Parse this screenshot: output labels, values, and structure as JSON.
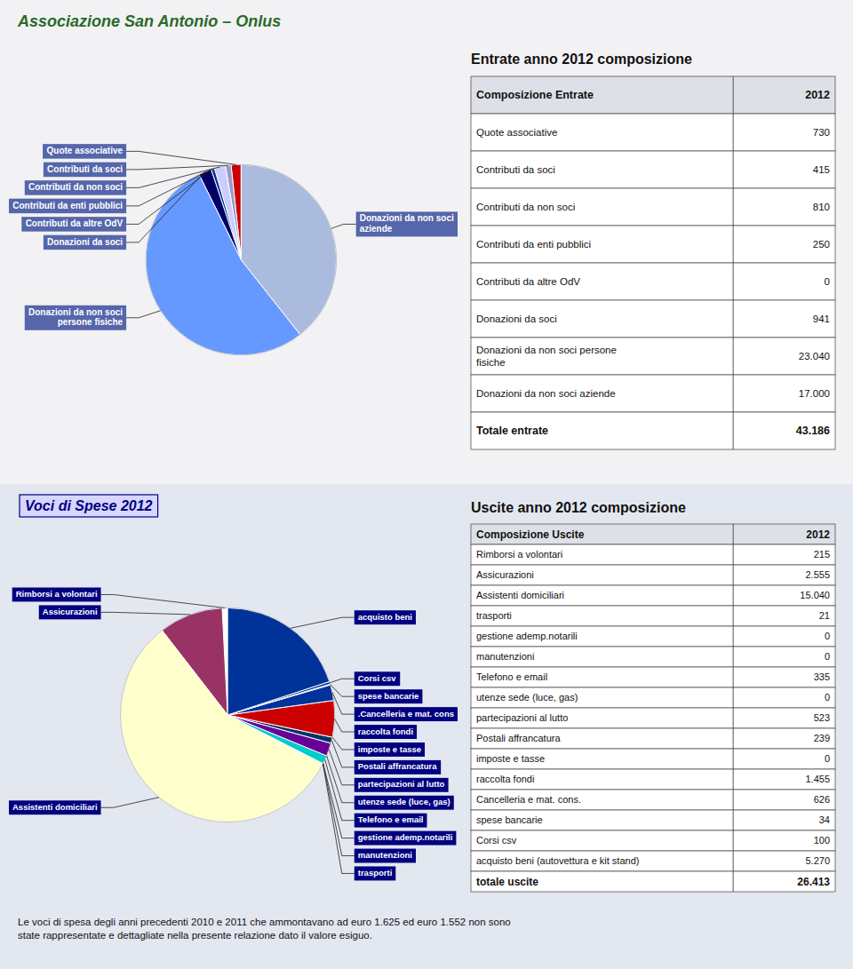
{
  "title": "Associazione San Antonio – Onlus",
  "footer": "Le voci di spesa degli anni precedenti 2010 e 2011 che ammontavano ad euro 1.625 ed euro 1.552 non sono\nstate rappresentate e dettagliate nella presente relazione dato il valore esiguo.",
  "chart_data": [
    {
      "type": "pie",
      "title": "Entrate anno 2012 composizione",
      "categories": [
        "Quote associative",
        "Contributi da soci",
        "Contributi da non soci",
        "Contributi da enti pubblici",
        "Contributi da altre OdV",
        "Donazioni da soci",
        "Donazioni da non soci\npersone fisiche",
        "Donazioni da non soci\naziende"
      ],
      "values": [
        730,
        415,
        810,
        250,
        0,
        941,
        23040,
        17000
      ],
      "colors": [
        "#cc0000",
        "#9999cc",
        "#ccccff",
        "#003399",
        "#ffff99",
        "#000066",
        "#6699ff",
        "#aabbdd"
      ],
      "table": {
        "header": [
          "Composizione Entrate",
          "2012"
        ],
        "rows": [
          [
            "Quote associative",
            "730"
          ],
          [
            "Contributi da soci",
            "415"
          ],
          [
            "Contributi da non soci",
            "810"
          ],
          [
            "Contributi da enti pubblici",
            "250"
          ],
          [
            "Contributi da altre OdV",
            "0"
          ],
          [
            "Donazioni da soci",
            "941"
          ],
          [
            "Donazioni da non soci persone\nfisiche",
            "23.040"
          ],
          [
            "Donazioni da non soci aziende",
            "17.000"
          ]
        ],
        "total": [
          "Totale entrate",
          "43.186"
        ]
      }
    },
    {
      "type": "pie",
      "title": "Uscite anno 2012 composizione",
      "subtitle": "Voci di Spese 2012",
      "categories": [
        "Rimborsi a volontari",
        "Assicurazioni",
        "Assistenti domiciliari",
        "trasporti",
        "gestione ademp.notarili",
        "manutenzioni",
        "Telefono e email",
        "utenze sede (luce, gas)",
        "partecipazioni al lutto",
        "Postali affrancatura",
        "imposte e tasse",
        "raccolta fondi",
        ".Cancelleria e mat. cons",
        "spese bancarie",
        "Corsi csv",
        "acquisto beni"
      ],
      "values": [
        215,
        2555,
        15040,
        21,
        0,
        0,
        335,
        0,
        523,
        239,
        0,
        1455,
        626,
        34,
        100,
        5270
      ],
      "colors": [
        "#ffffff",
        "#993366",
        "#ffffcc",
        "#005500",
        "#003399",
        "#003399",
        "#00cccc",
        "#ff00ff",
        "#660099",
        "#003366",
        "#336699",
        "#cc0000",
        "#003399",
        "#003399",
        "#003399",
        "#003399"
      ],
      "table": {
        "header": [
          "Composizione Uscite",
          "2012"
        ],
        "rows": [
          [
            "Rimborsi a volontari",
            "215"
          ],
          [
            "Assicurazioni",
            "2.555"
          ],
          [
            "Assistenti domiciliari",
            "15.040"
          ],
          [
            "trasporti",
            "21"
          ],
          [
            "gestione ademp.notarili",
            "0"
          ],
          [
            "manutenzioni",
            "0"
          ],
          [
            "Telefono e email",
            "335"
          ],
          [
            "utenze sede (luce, gas)",
            "0"
          ],
          [
            "partecipazioni al lutto",
            "523"
          ],
          [
            "Postali affrancatura",
            "239"
          ],
          [
            "imposte e tasse",
            "0"
          ],
          [
            "raccolta fondi",
            "1.455"
          ],
          [
            "Cancelleria e mat. cons.",
            "626"
          ],
          [
            "spese bancarie",
            "34"
          ],
          [
            "Corsi csv",
            "100"
          ],
          [
            "acquisto beni (autovettura e kit stand)",
            "5.270"
          ]
        ],
        "total": [
          "totale uscite",
          "26.413"
        ]
      }
    }
  ]
}
